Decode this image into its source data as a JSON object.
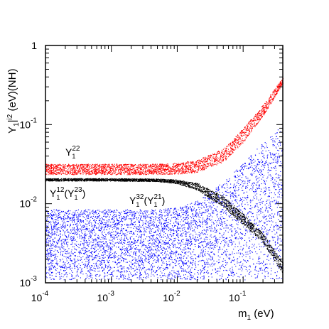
{
  "chart_data": {
    "type": "scatter",
    "x_scale": "log",
    "y_scale": "log",
    "xlim": [
      0.0001,
      0.4
    ],
    "ylim": [
      0.001,
      1
    ],
    "x_ticks": [
      {
        "value": 0.0001,
        "base": "10",
        "exp": "-4"
      },
      {
        "value": 0.001,
        "base": "10",
        "exp": "-3"
      },
      {
        "value": 0.01,
        "base": "10",
        "exp": "-2"
      },
      {
        "value": 0.1,
        "base": "10",
        "exp": "-1"
      }
    ],
    "y_ticks": [
      {
        "value": 1,
        "base": "1",
        "exp": ""
      },
      {
        "value": 0.1,
        "base": "10",
        "exp": "-1"
      },
      {
        "value": 0.01,
        "base": "10",
        "exp": "-2"
      },
      {
        "value": 0.001,
        "base": "10",
        "exp": "-3"
      }
    ],
    "xlabel": {
      "main": "m",
      "sub": "1",
      "rest": " (eV)"
    },
    "ylabel": {
      "pre": "Y",
      "sub": "1",
      "sup": "i2",
      "rest": " (eV)(NH)"
    },
    "grid": false,
    "series": [
      {
        "name": "Y1^22",
        "color": "#ff0000",
        "label": {
          "main": "Y",
          "sub": "1",
          "sup": "22"
        },
        "band_x": [
          0.0001,
          0.001,
          0.005,
          0.01,
          0.02,
          0.05,
          0.1,
          0.2,
          0.4
        ],
        "band_low": [
          0.0235,
          0.0235,
          0.0235,
          0.0238,
          0.025,
          0.034,
          0.06,
          0.13,
          0.33
        ],
        "band_high": [
          0.032,
          0.032,
          0.032,
          0.033,
          0.036,
          0.05,
          0.09,
          0.18,
          0.4
        ]
      },
      {
        "name": "Y1^12(Y1^23)",
        "color": "#000000",
        "label": {
          "main": "Y",
          "sub": "1",
          "sup": "12",
          "paren_main": "Y",
          "paren_sub": "1",
          "paren_sup": "23"
        },
        "band_x": [
          0.0001,
          0.001,
          0.005,
          0.01,
          0.02,
          0.05,
          0.1,
          0.2,
          0.4
        ],
        "band_low": [
          0.0195,
          0.0195,
          0.0192,
          0.018,
          0.015,
          0.009,
          0.0055,
          0.0032,
          0.0013
        ],
        "band_high": [
          0.021,
          0.021,
          0.0208,
          0.0202,
          0.0185,
          0.0125,
          0.0075,
          0.0042,
          0.0018
        ]
      },
      {
        "name": "Y1^32(Y1^21)",
        "color": "#0000ff",
        "label": {
          "main": "Y",
          "sub": "1",
          "sup": "32",
          "paren_main": "Y",
          "paren_sub": "1",
          "paren_sup": "21"
        },
        "band_x": [
          0.0001,
          0.001,
          0.005,
          0.01,
          0.02,
          0.05,
          0.1,
          0.2,
          0.3,
          0.4
        ],
        "band_low": [
          0.0011,
          0.0011,
          0.0011,
          0.0011,
          0.0011,
          0.0011,
          0.0011,
          0.0011,
          0.0011,
          0.0011
        ],
        "band_high": [
          0.0085,
          0.0085,
          0.0085,
          0.009,
          0.011,
          0.019,
          0.033,
          0.06,
          0.08,
          0.1
        ]
      }
    ]
  }
}
